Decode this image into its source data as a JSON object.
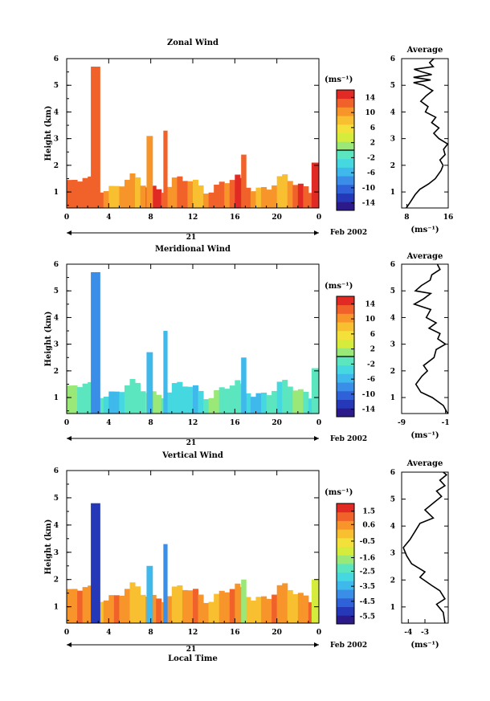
{
  "figure": {
    "date_label": "Feb 2002",
    "day_label": "21",
    "bottom_xlabel": "Local Time"
  },
  "chart_data": [
    {
      "type": "heatmap",
      "title": "Zonal Wind",
      "ylabel": "Height (km)",
      "xlabel": "Local Time",
      "x_ticks": [
        "0",
        "4",
        "8",
        "12",
        "16",
        "20",
        "0"
      ],
      "xlim": [
        0,
        24
      ],
      "ylim": [
        0.4,
        6
      ],
      "y_ticks": [
        1,
        2,
        3,
        4,
        5,
        6
      ],
      "colorbar": {
        "unit": "(ms⁻¹)",
        "ticks": [
          14,
          10,
          6,
          2,
          -2,
          -6,
          -10,
          -14
        ],
        "min": -16,
        "max": 16,
        "zero_line": 2
      },
      "fill": {
        "bottom_height": 0.4,
        "base_top": 1.3,
        "base_value": 11,
        "gap_end": 23.3,
        "towers": [
          {
            "x0": 2.3,
            "x1": 3.2,
            "top": 5.7,
            "value": 13
          },
          {
            "x0": 7.6,
            "x1": 8.2,
            "top": 3.1,
            "value": 10
          },
          {
            "x0": 9.2,
            "x1": 9.6,
            "top": 3.3,
            "value": 12
          },
          {
            "x0": 16.6,
            "x1": 17.1,
            "top": 2.4,
            "value": 13
          },
          {
            "x0": 23.3,
            "x1": 24,
            "top": 2.1,
            "value": 14
          }
        ]
      },
      "profile": {
        "title": "Average",
        "xlabel": "(ms⁻¹)",
        "x_ticks": [
          8,
          16
        ],
        "xlim": [
          7,
          16
        ],
        "ylim": [
          0.4,
          6
        ],
        "y_ticks": [
          1,
          2,
          3,
          4,
          5,
          6
        ],
        "points": [
          [
            7.9,
            0.4
          ],
          [
            8.6,
            0.6
          ],
          [
            9.6,
            0.9
          ],
          [
            10.5,
            1.1
          ],
          [
            12.2,
            1.3
          ],
          [
            13.5,
            1.5
          ],
          [
            14.6,
            1.8
          ],
          [
            15.0,
            2.0
          ],
          [
            14.4,
            2.2
          ],
          [
            15.4,
            2.4
          ],
          [
            15.1,
            2.6
          ],
          [
            15.9,
            2.8
          ],
          [
            14.2,
            3.0
          ],
          [
            13.2,
            3.2
          ],
          [
            14.2,
            3.4
          ],
          [
            12.8,
            3.6
          ],
          [
            13.6,
            3.8
          ],
          [
            11.6,
            4.0
          ],
          [
            12.1,
            4.2
          ],
          [
            10.7,
            4.4
          ],
          [
            11.7,
            4.6
          ],
          [
            13.0,
            4.8
          ],
          [
            11.2,
            5.0
          ],
          [
            9.3,
            5.1
          ],
          [
            12.6,
            5.2
          ],
          [
            9.3,
            5.3
          ],
          [
            12.8,
            5.4
          ],
          [
            11.0,
            5.5
          ],
          [
            9.4,
            5.6
          ],
          [
            13.1,
            5.7
          ],
          [
            12.4,
            5.85
          ],
          [
            13.2,
            6.0
          ]
        ]
      }
    },
    {
      "type": "heatmap",
      "title": "Meridional Wind",
      "ylabel": "Height (km)",
      "xlabel": "Local Time",
      "x_ticks": [
        "0",
        "4",
        "8",
        "12",
        "16",
        "20",
        "0"
      ],
      "xlim": [
        0,
        24
      ],
      "ylim": [
        0.4,
        6
      ],
      "y_ticks": [
        1,
        2,
        3,
        4,
        5,
        6
      ],
      "colorbar": {
        "unit": "(ms⁻¹)",
        "ticks": [
          14,
          10,
          6,
          2,
          -2,
          -6,
          -10,
          -14
        ],
        "min": -16,
        "max": 16,
        "zero_line": 2
      },
      "fill": {
        "bottom_height": 0.4,
        "base_top": 1.3,
        "base_value": -2,
        "gap_end": 23.3,
        "towers": [
          {
            "x0": 2.3,
            "x1": 3.2,
            "top": 5.7,
            "value": -7
          },
          {
            "x0": 7.6,
            "x1": 8.2,
            "top": 2.7,
            "value": -6
          },
          {
            "x0": 9.2,
            "x1": 9.6,
            "top": 3.5,
            "value": -5
          },
          {
            "x0": 16.6,
            "x1": 17.1,
            "top": 2.5,
            "value": -6
          },
          {
            "x0": 23.3,
            "x1": 24,
            "top": 2.1,
            "value": -1
          }
        ]
      },
      "profile": {
        "title": "Average",
        "xlabel": "(ms⁻¹)",
        "x_ticks": [
          -9,
          -1
        ],
        "xlim": [
          -9,
          -0.5
        ],
        "ylim": [
          0.4,
          6
        ],
        "y_ticks": [
          1,
          2,
          3,
          4,
          5,
          6
        ],
        "points": [
          [
            -0.6,
            0.4
          ],
          [
            -1.4,
            0.7
          ],
          [
            -3.4,
            1.0
          ],
          [
            -5.5,
            1.2
          ],
          [
            -6.4,
            1.5
          ],
          [
            -5.3,
            1.8
          ],
          [
            -4.3,
            2.0
          ],
          [
            -5.0,
            2.2
          ],
          [
            -3.1,
            2.5
          ],
          [
            -2.7,
            2.8
          ],
          [
            -1.0,
            3.0
          ],
          [
            -2.4,
            3.2
          ],
          [
            -2.0,
            3.4
          ],
          [
            -4.0,
            3.6
          ],
          [
            -2.7,
            3.8
          ],
          [
            -4.5,
            4.0
          ],
          [
            -3.7,
            4.3
          ],
          [
            -6.7,
            4.5
          ],
          [
            -5.0,
            4.7
          ],
          [
            -3.7,
            4.9
          ],
          [
            -6.5,
            5.0
          ],
          [
            -5.4,
            5.2
          ],
          [
            -3.8,
            5.4
          ],
          [
            -3.5,
            5.6
          ],
          [
            -2.0,
            5.8
          ],
          [
            -2.5,
            6.0
          ]
        ]
      }
    },
    {
      "type": "heatmap",
      "title": "Vertical Wind",
      "ylabel": "Height (km)",
      "xlabel": "Local Time",
      "x_ticks": [
        "0",
        "4",
        "8",
        "12",
        "16",
        "20",
        "0"
      ],
      "xlim": [
        0,
        24
      ],
      "ylim": [
        0.4,
        6
      ],
      "y_ticks": [
        1,
        2,
        3,
        4,
        5,
        6
      ],
      "colorbar": {
        "unit": "(ms⁻¹)",
        "ticks": [
          1.5,
          0.6,
          -0.5,
          -1.6,
          -2.5,
          -3.5,
          -4.5,
          -5.5
        ],
        "min": -6,
        "max": 2,
        "zero_line": null
      },
      "fill": {
        "bottom_height": 0.4,
        "base_top": 1.5,
        "base_value": 0.5,
        "gap_end": 24,
        "towers": [
          {
            "x0": 2.3,
            "x1": 3.2,
            "top": 4.8,
            "value": -5.0
          },
          {
            "x0": 7.6,
            "x1": 8.2,
            "top": 2.5,
            "value": -3.5
          },
          {
            "x0": 9.2,
            "x1": 9.6,
            "top": 3.3,
            "value": -4.0
          },
          {
            "x0": 16.6,
            "x1": 17.1,
            "top": 2.0,
            "value": -1.6
          },
          {
            "x0": 23.3,
            "x1": 24,
            "top": 2.0,
            "value": -1.0
          }
        ]
      },
      "profile": {
        "title": "Average",
        "xlabel": "(ms⁻¹)",
        "x_ticks": [
          -4,
          -3
        ],
        "xlim": [
          -4.4,
          -1.6
        ],
        "ylim": [
          0.4,
          6
        ],
        "y_ticks": [
          1,
          2,
          3,
          4,
          5,
          6
        ],
        "points": [
          [
            -1.8,
            0.4
          ],
          [
            -1.9,
            0.8
          ],
          [
            -2.3,
            1.1
          ],
          [
            -1.8,
            1.3
          ],
          [
            -2.1,
            1.6
          ],
          [
            -2.6,
            1.8
          ],
          [
            -3.3,
            2.1
          ],
          [
            -3.0,
            2.3
          ],
          [
            -3.8,
            2.6
          ],
          [
            -4.1,
            2.9
          ],
          [
            -4.3,
            3.2
          ],
          [
            -3.9,
            3.5
          ],
          [
            -3.6,
            3.8
          ],
          [
            -3.3,
            4.1
          ],
          [
            -2.5,
            4.3
          ],
          [
            -3.0,
            4.6
          ],
          [
            -2.4,
            4.9
          ],
          [
            -2.0,
            5.1
          ],
          [
            -2.3,
            5.3
          ],
          [
            -1.8,
            5.5
          ],
          [
            -2.1,
            5.7
          ],
          [
            -1.7,
            5.9
          ],
          [
            -1.9,
            6.0
          ]
        ]
      }
    }
  ]
}
